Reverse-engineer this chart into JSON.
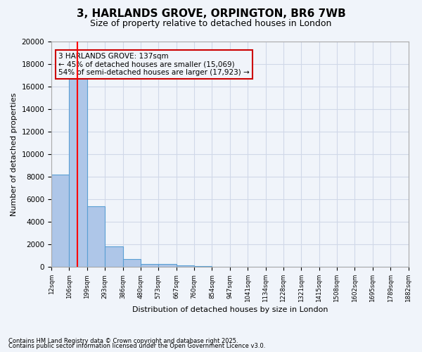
{
  "title": "3, HARLANDS GROVE, ORPINGTON, BR6 7WB",
  "subtitle": "Size of property relative to detached houses in London",
  "xlabel": "Distribution of detached houses by size in London",
  "ylabel": "Number of detached properties",
  "footer1": "Contains HM Land Registry data © Crown copyright and database right 2025.",
  "footer2": "Contains public sector information licensed under the Open Government Licence v3.0.",
  "annotation_line1": "3 HARLANDS GROVE: 137sqm",
  "annotation_line2": "← 45% of detached houses are smaller (15,069)",
  "annotation_line3": "54% of semi-detached houses are larger (17,923) →",
  "bar_heights": [
    8200,
    16700,
    5400,
    1850,
    700,
    300,
    250,
    175,
    100,
    30,
    15,
    10,
    8,
    5,
    4,
    3,
    2,
    2,
    2,
    1
  ],
  "categories": [
    "12sqm",
    "106sqm",
    "199sqm",
    "293sqm",
    "386sqm",
    "480sqm",
    "573sqm",
    "667sqm",
    "760sqm",
    "854sqm",
    "947sqm",
    "1041sqm",
    "1134sqm",
    "1228sqm",
    "1321sqm",
    "1415sqm",
    "1508sqm",
    "1602sqm",
    "1695sqm",
    "1789sqm",
    "1882sqm"
  ],
  "bar_color": "#aec6e8",
  "bar_edge_color": "#5a9fd4",
  "red_line_x": 1.45,
  "ylim": [
    0,
    20000
  ],
  "yticks": [
    0,
    2000,
    4000,
    6000,
    8000,
    10000,
    12000,
    14000,
    16000,
    18000,
    20000
  ],
  "grid_color": "#d0d8e8",
  "annotation_box_color": "#cc0000",
  "bg_color": "#f0f4fa"
}
